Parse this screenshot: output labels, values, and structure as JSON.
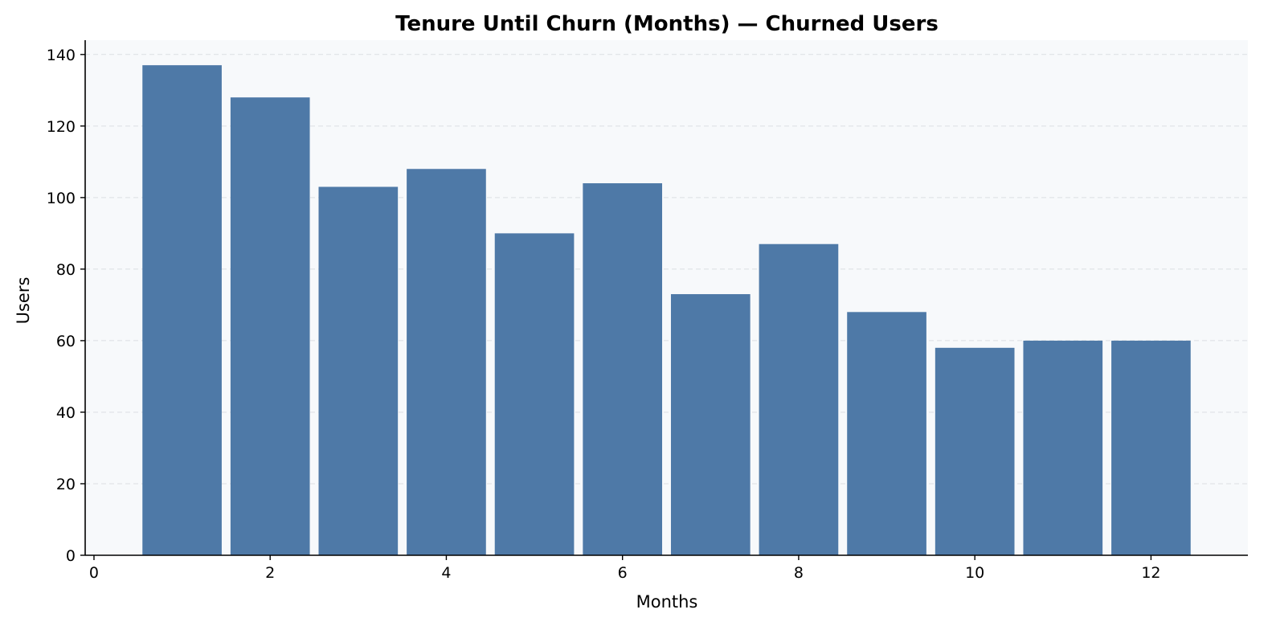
{
  "chart_data": {
    "type": "bar",
    "title": "Tenure Until Churn (Months) — Churned Users",
    "xlabel": "Months",
    "ylabel": "Users",
    "x": [
      1,
      2,
      3,
      4,
      5,
      6,
      7,
      8,
      9,
      10,
      11,
      12
    ],
    "values": [
      137,
      128,
      103,
      108,
      90,
      104,
      73,
      87,
      68,
      58,
      60,
      60
    ],
    "bar_width": 0.9,
    "xlim": [
      -0.1,
      13.1
    ],
    "ylim": [
      0,
      144
    ],
    "xticks": [
      0,
      2,
      4,
      6,
      8,
      10,
      12
    ],
    "yticks": [
      0,
      20,
      40,
      60,
      80,
      100,
      120,
      140
    ],
    "grid": "y-dashed",
    "colors": {
      "bar": "#4e79a7",
      "plot_background": "#f7f9fb"
    }
  }
}
